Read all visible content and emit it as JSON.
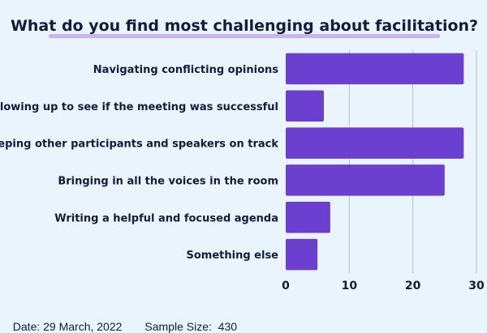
{
  "chart_data": {
    "type": "bar",
    "orientation": "horizontal",
    "title": "What do you find most challenging about facilitation?",
    "categories": [
      "Navigating conflicting opinions",
      "Following up to see if the meeting was successful",
      "Keeping other participants and speakers on track",
      "Bringing in all the voices in the room",
      "Writing a helpful and focused agenda",
      "Something else"
    ],
    "values": [
      28,
      6,
      28,
      25,
      7,
      5
    ],
    "xlim": [
      0,
      30
    ],
    "xticks": [
      0,
      10,
      20,
      30
    ],
    "grid": true,
    "bar_color": "#6b3fd0",
    "title_underline_color": "#c9b3f2"
  },
  "footer": {
    "date": "Date: 29 March, 2022",
    "sample_size": "Sample Size:  430"
  },
  "colors": {
    "background": "#eaf4fc",
    "text": "#121d3d",
    "grid": "#b9bfd0"
  }
}
